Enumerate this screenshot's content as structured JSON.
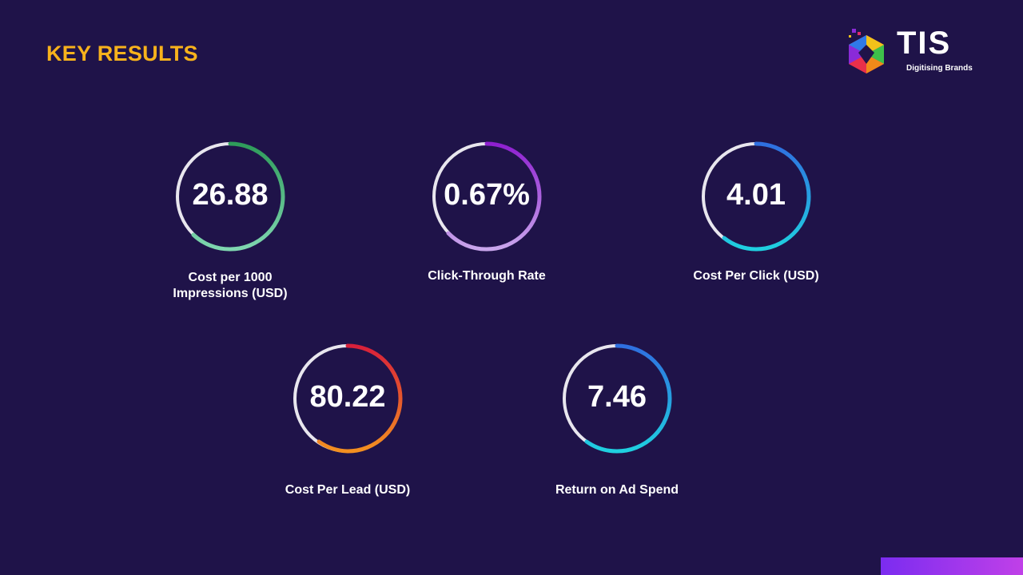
{
  "slide": {
    "title": "KEY RESULTS"
  },
  "logo": {
    "text": "TIS",
    "tagline": "Digitising Brands"
  },
  "kpis": [
    {
      "value": "26.88",
      "label": "Cost per 1000 Impressions (USD)",
      "arc_start": "#2e9c5a",
      "arc_end": "#7fd6b0"
    },
    {
      "value": "0.67%",
      "label": "Click-Through Rate",
      "arc_start": "#8e1fd0",
      "arc_end": "#c9a6ec"
    },
    {
      "value": "4.01",
      "label": "Cost Per Click (USD)",
      "arc_start": "#2f6fe0",
      "arc_end": "#1fd0e0"
    },
    {
      "value": "80.22",
      "label": "Cost Per Lead (USD)",
      "arc_start": "#d8203a",
      "arc_end": "#f39020"
    },
    {
      "value": "7.46",
      "label": "Return on Ad Spend",
      "arc_start": "#2f6fe0",
      "arc_end": "#1fd0e0"
    }
  ]
}
